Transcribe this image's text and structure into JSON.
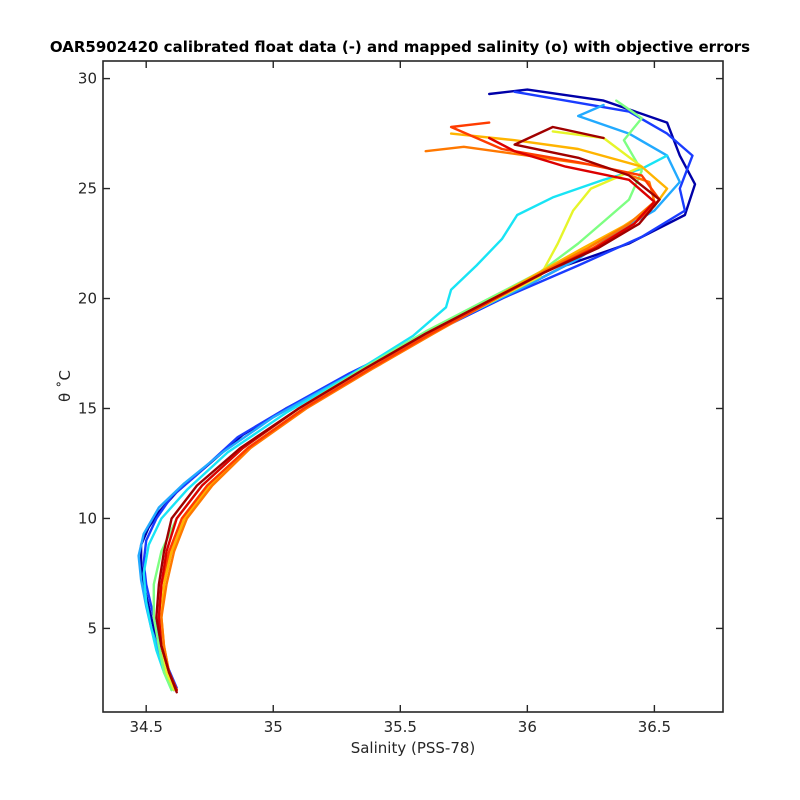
{
  "chart_data": {
    "type": "line",
    "title": "OAR5902420 calibrated float data (-) and mapped salinity (o) with objective errors",
    "xlabel": "Salinity (PSS-78)",
    "ylabel": "θ ˚C",
    "xlim": [
      34.33,
      36.77
    ],
    "ylim": [
      1.2,
      30.8
    ],
    "xticks": [
      34.5,
      35,
      35.5,
      36,
      36.5
    ],
    "xtick_labels": [
      "34.5",
      "35",
      "35.5",
      "36",
      "36.5"
    ],
    "yticks": [
      5,
      10,
      15,
      20,
      25,
      30
    ],
    "ytick_labels": [
      "5",
      "10",
      "15",
      "20",
      "25",
      "30"
    ],
    "grid": false,
    "colormap": "jet",
    "colors": [
      "#00008f",
      "#0000ff",
      "#0080ff",
      "#00ffff",
      "#80ff80",
      "#ffff00",
      "#ff8000",
      "#ff0000",
      "#800000"
    ],
    "series": [
      {
        "color": "#0000a8",
        "values": [
          [
            34.61,
            2.2
          ],
          [
            34.58,
            3
          ],
          [
            34.55,
            4
          ],
          [
            34.53,
            5
          ],
          [
            34.51,
            6
          ],
          [
            34.49,
            7
          ],
          [
            34.48,
            8
          ],
          [
            34.48,
            8.8
          ],
          [
            34.51,
            9.6
          ],
          [
            34.55,
            10.3
          ],
          [
            34.62,
            11.2
          ],
          [
            34.72,
            12.2
          ],
          [
            34.88,
            13.8
          ],
          [
            35.05,
            15
          ],
          [
            35.3,
            16.5
          ],
          [
            35.6,
            18.3
          ],
          [
            35.9,
            20
          ],
          [
            36.15,
            21.5
          ],
          [
            36.4,
            22.5
          ],
          [
            36.62,
            23.8
          ],
          [
            36.66,
            25.2
          ],
          [
            36.6,
            26.5
          ],
          [
            36.55,
            28
          ],
          [
            36.3,
            29
          ],
          [
            36.0,
            29.5
          ],
          [
            35.85,
            29.3
          ]
        ]
      },
      {
        "color": "#1a3cff",
        "values": [
          [
            34.62,
            2.3
          ],
          [
            34.59,
            3.1
          ],
          [
            34.56,
            4
          ],
          [
            34.54,
            5
          ],
          [
            34.52,
            6
          ],
          [
            34.5,
            7
          ],
          [
            34.49,
            8
          ],
          [
            34.5,
            9
          ],
          [
            34.54,
            10
          ],
          [
            34.6,
            11
          ],
          [
            34.7,
            12
          ],
          [
            34.86,
            13.7
          ],
          [
            35.05,
            15
          ],
          [
            35.3,
            16.6
          ],
          [
            35.6,
            18.3
          ],
          [
            35.9,
            20
          ],
          [
            36.2,
            21.5
          ],
          [
            36.45,
            22.8
          ],
          [
            36.62,
            24
          ],
          [
            36.6,
            25
          ],
          [
            36.65,
            26.5
          ],
          [
            36.55,
            27.5
          ],
          [
            36.4,
            28.5
          ],
          [
            36.15,
            29
          ],
          [
            35.95,
            29.4
          ]
        ]
      },
      {
        "color": "#22aaff",
        "values": [
          [
            34.61,
            2.2
          ],
          [
            34.58,
            3
          ],
          [
            34.55,
            4
          ],
          [
            34.52,
            5
          ],
          [
            34.5,
            6
          ],
          [
            34.48,
            7.2
          ],
          [
            34.47,
            8.3
          ],
          [
            34.49,
            9.3
          ],
          [
            34.55,
            10.5
          ],
          [
            34.65,
            11.6
          ],
          [
            34.8,
            13
          ],
          [
            35.0,
            14.6
          ],
          [
            35.25,
            16.2
          ],
          [
            35.5,
            17.7
          ],
          [
            35.75,
            19.2
          ],
          [
            36.0,
            20.6
          ],
          [
            36.2,
            21.8
          ],
          [
            36.35,
            23
          ],
          [
            36.5,
            24
          ],
          [
            36.6,
            25.3
          ],
          [
            36.55,
            26.5
          ],
          [
            36.4,
            27.5
          ],
          [
            36.2,
            28.3
          ],
          [
            36.3,
            28.8
          ]
        ]
      },
      {
        "color": "#18e4f5",
        "values": [
          [
            34.6,
            2.2
          ],
          [
            34.57,
            3
          ],
          [
            34.54,
            4
          ],
          [
            34.52,
            5
          ],
          [
            34.5,
            6.2
          ],
          [
            34.49,
            7.5
          ],
          [
            34.51,
            8.8
          ],
          [
            34.56,
            10
          ],
          [
            34.66,
            11.3
          ],
          [
            34.82,
            13
          ],
          [
            35.05,
            14.8
          ],
          [
            35.3,
            16.5
          ],
          [
            35.55,
            18.3
          ],
          [
            35.68,
            19.6
          ],
          [
            35.7,
            20.4
          ],
          [
            35.8,
            21.5
          ],
          [
            35.9,
            22.7
          ],
          [
            35.96,
            23.8
          ],
          [
            36.1,
            24.6
          ],
          [
            36.3,
            25.4
          ],
          [
            36.45,
            25.9
          ],
          [
            36.55,
            26.5
          ]
        ]
      },
      {
        "color": "#7dff82",
        "values": [
          [
            34.6,
            2.2
          ],
          [
            34.57,
            3
          ],
          [
            34.55,
            4.2
          ],
          [
            34.53,
            5.5
          ],
          [
            34.53,
            7
          ],
          [
            34.56,
            8.5
          ],
          [
            34.62,
            10
          ],
          [
            34.72,
            11.5
          ],
          [
            34.88,
            13.2
          ],
          [
            35.1,
            15
          ],
          [
            35.35,
            16.8
          ],
          [
            35.6,
            18.5
          ],
          [
            35.85,
            20
          ],
          [
            36.05,
            21.2
          ],
          [
            36.2,
            22.5
          ],
          [
            36.3,
            23.5
          ],
          [
            36.4,
            24.5
          ],
          [
            36.45,
            25.8
          ],
          [
            36.38,
            27.2
          ],
          [
            36.45,
            28.2
          ],
          [
            36.35,
            29
          ]
        ]
      },
      {
        "color": "#e6f52a",
        "values": [
          [
            34.61,
            2.2
          ],
          [
            34.58,
            3
          ],
          [
            34.56,
            4.2
          ],
          [
            34.55,
            5.5
          ],
          [
            34.56,
            7
          ],
          [
            34.6,
            8.5
          ],
          [
            34.66,
            10
          ],
          [
            34.75,
            11.5
          ],
          [
            34.9,
            13.2
          ],
          [
            35.12,
            15
          ],
          [
            35.38,
            16.8
          ],
          [
            35.62,
            18.4
          ],
          [
            35.85,
            19.8
          ],
          [
            36.05,
            21
          ],
          [
            36.12,
            22.5
          ],
          [
            36.18,
            24
          ],
          [
            36.25,
            25
          ],
          [
            36.35,
            25.5
          ],
          [
            36.45,
            26
          ],
          [
            36.3,
            27.3
          ],
          [
            36.1,
            27.6
          ]
        ]
      },
      {
        "color": "#ffb400",
        "values": [
          [
            34.62,
            2.2
          ],
          [
            34.59,
            3
          ],
          [
            34.57,
            4.2
          ],
          [
            34.56,
            5.5
          ],
          [
            34.57,
            7
          ],
          [
            34.6,
            8.5
          ],
          [
            34.65,
            10
          ],
          [
            34.75,
            11.5
          ],
          [
            34.9,
            13.2
          ],
          [
            35.12,
            15
          ],
          [
            35.38,
            16.8
          ],
          [
            35.62,
            18.4
          ],
          [
            35.85,
            19.9
          ],
          [
            36.05,
            21.2
          ],
          [
            36.22,
            22.3
          ],
          [
            36.38,
            23.3
          ],
          [
            36.5,
            24.2
          ],
          [
            36.55,
            25
          ],
          [
            36.45,
            26
          ],
          [
            36.2,
            26.8
          ],
          [
            35.95,
            27.2
          ],
          [
            35.7,
            27.5
          ]
        ]
      },
      {
        "color": "#ff7800",
        "values": [
          [
            34.62,
            2.2
          ],
          [
            34.59,
            3
          ],
          [
            34.57,
            4.2
          ],
          [
            34.56,
            5.5
          ],
          [
            34.58,
            7
          ],
          [
            34.61,
            8.5
          ],
          [
            34.66,
            10
          ],
          [
            34.76,
            11.5
          ],
          [
            34.91,
            13.2
          ],
          [
            35.13,
            15
          ],
          [
            35.39,
            16.8
          ],
          [
            35.63,
            18.4
          ],
          [
            35.86,
            19.9
          ],
          [
            36.06,
            21.2
          ],
          [
            36.24,
            22.3
          ],
          [
            36.4,
            23.4
          ],
          [
            36.5,
            24.4
          ],
          [
            36.48,
            25.3
          ],
          [
            36.3,
            26
          ],
          [
            36.0,
            26.5
          ],
          [
            35.75,
            26.9
          ],
          [
            35.6,
            26.7
          ]
        ]
      },
      {
        "color": "#ff3c00",
        "values": [
          [
            34.62,
            2.2
          ],
          [
            34.59,
            3
          ],
          [
            34.56,
            4.2
          ],
          [
            34.55,
            5.5
          ],
          [
            34.56,
            7
          ],
          [
            34.59,
            8.5
          ],
          [
            34.64,
            10
          ],
          [
            34.74,
            11.5
          ],
          [
            34.9,
            13.2
          ],
          [
            35.12,
            15
          ],
          [
            35.38,
            16.8
          ],
          [
            35.62,
            18.4
          ],
          [
            35.86,
            19.9
          ],
          [
            36.07,
            21.2
          ],
          [
            36.26,
            22.3
          ],
          [
            36.42,
            23.4
          ],
          [
            36.52,
            24.5
          ],
          [
            36.45,
            25.6
          ],
          [
            36.2,
            26.2
          ],
          [
            35.9,
            26.8
          ],
          [
            35.7,
            27.8
          ],
          [
            35.85,
            28.0
          ]
        ]
      },
      {
        "color": "#dc0000",
        "values": [
          [
            34.62,
            2.2
          ],
          [
            34.59,
            3
          ],
          [
            34.56,
            4.2
          ],
          [
            34.55,
            5.5
          ],
          [
            34.56,
            7
          ],
          [
            34.58,
            8.5
          ],
          [
            34.62,
            10
          ],
          [
            34.72,
            11.5
          ],
          [
            34.88,
            13.2
          ],
          [
            35.1,
            15
          ],
          [
            35.36,
            16.8
          ],
          [
            35.6,
            18.4
          ],
          [
            35.85,
            19.9
          ],
          [
            36.07,
            21.2
          ],
          [
            36.27,
            22.3
          ],
          [
            36.42,
            23.4
          ],
          [
            36.5,
            24.4
          ],
          [
            36.4,
            25.4
          ],
          [
            36.15,
            26
          ],
          [
            35.95,
            26.7
          ],
          [
            35.85,
            27.3
          ]
        ]
      },
      {
        "color": "#a00000",
        "values": [
          [
            34.62,
            2.1
          ],
          [
            34.59,
            3
          ],
          [
            34.56,
            4.2
          ],
          [
            34.54,
            5.5
          ],
          [
            34.55,
            7
          ],
          [
            34.57,
            8.5
          ],
          [
            34.6,
            10
          ],
          [
            34.7,
            11.5
          ],
          [
            34.87,
            13.2
          ],
          [
            35.1,
            15
          ],
          [
            35.36,
            16.8
          ],
          [
            35.6,
            18.4
          ],
          [
            35.85,
            19.9
          ],
          [
            36.07,
            21.2
          ],
          [
            36.28,
            22.3
          ],
          [
            36.44,
            23.4
          ],
          [
            36.52,
            24.5
          ],
          [
            36.4,
            25.6
          ],
          [
            36.2,
            26.4
          ],
          [
            35.95,
            27
          ],
          [
            36.1,
            27.8
          ],
          [
            36.3,
            27.3
          ]
        ]
      }
    ]
  }
}
